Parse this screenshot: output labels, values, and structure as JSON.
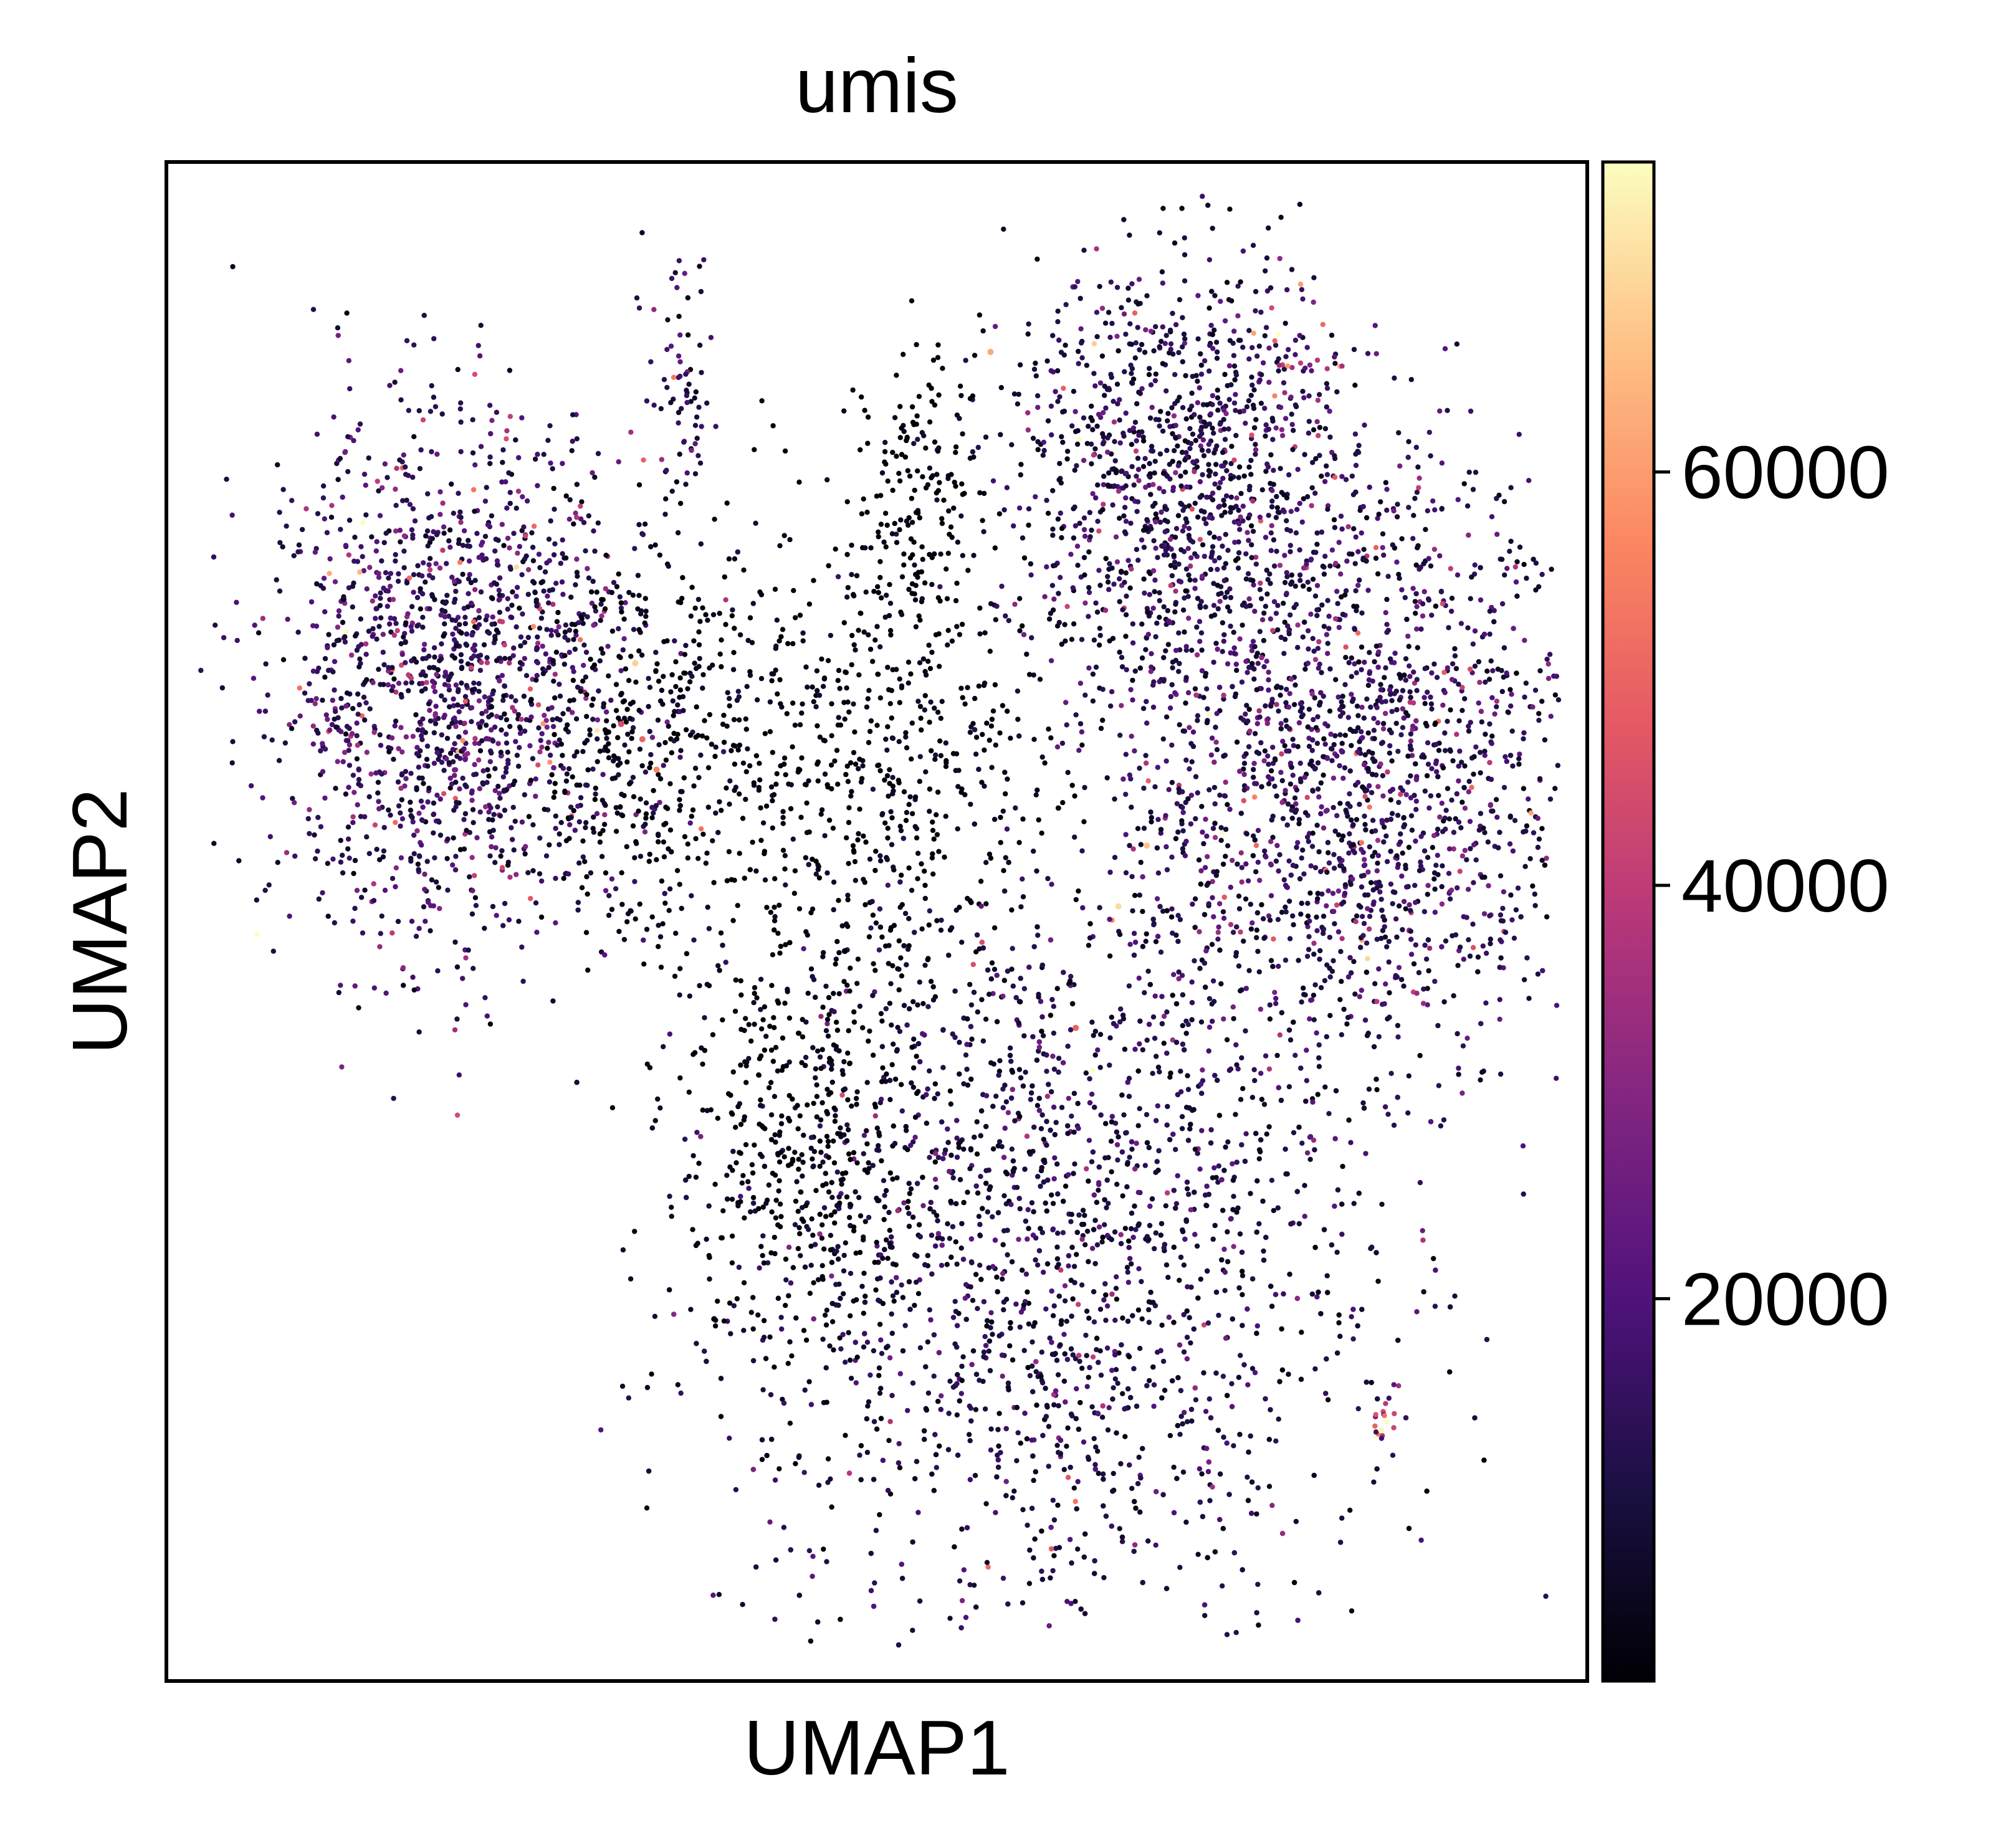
{
  "chart_data": {
    "type": "scatter",
    "title": "umis",
    "xlabel": "UMAP1",
    "ylabel": "UMAP2",
    "xlim": [
      0,
      100
    ],
    "ylim": [
      0,
      100
    ],
    "x_ticks": "none",
    "y_ticks": "none",
    "grid": false,
    "legend": "none",
    "colorbar": {
      "label": "",
      "colormap": "magma",
      "range": [
        1500,
        75000
      ],
      "ticks": [
        20000,
        40000,
        60000
      ],
      "tick_labels": [
        "20000",
        "40000",
        "60000"
      ],
      "placement": "right"
    },
    "point_count_approx": 9000,
    "clusters": [
      {
        "cx": 20,
        "cy": 66,
        "sx": 6.5,
        "sy": 8.5,
        "weight": 0.17,
        "mean_value": 14000
      },
      {
        "cx": 34,
        "cy": 62,
        "sx": 5.0,
        "sy": 7.0,
        "weight": 0.05,
        "mean_value": 4000
      },
      {
        "cx": 50,
        "cy": 60,
        "sx": 6.5,
        "sy": 8.0,
        "weight": 0.06,
        "mean_value": 3500
      },
      {
        "cx": 71,
        "cy": 79,
        "sx": 6.0,
        "sy": 7.5,
        "weight": 0.12,
        "mean_value": 11000
      },
      {
        "cx": 83,
        "cy": 60,
        "sx": 8.5,
        "sy": 10.0,
        "weight": 0.22,
        "mean_value": 13000
      },
      {
        "cx": 62,
        "cy": 28,
        "sx": 11.0,
        "sy": 13.0,
        "weight": 0.3,
        "mean_value": 10000
      },
      {
        "cx": 45,
        "cy": 35,
        "sx": 4.5,
        "sy": 7.5,
        "weight": 0.05,
        "mean_value": 3000
      },
      {
        "cx": 36,
        "cy": 85,
        "sx": 1.2,
        "sy": 4.5,
        "weight": 0.008,
        "mean_value": 12000
      },
      {
        "cx": 53,
        "cy": 78,
        "sx": 2.2,
        "sy": 5.0,
        "weight": 0.02,
        "mean_value": 3000
      },
      {
        "cx": 80,
        "cy": 87,
        "sx": 1.5,
        "sy": 2.0,
        "weight": 0.004,
        "mean_value": 28000
      },
      {
        "cx": 85.5,
        "cy": 17.5,
        "sx": 0.5,
        "sy": 1.0,
        "weight": 0.002,
        "mean_value": 40000
      }
    ],
    "notable_points": [
      {
        "x": 58,
        "y": 87.5,
        "value": 62000
      },
      {
        "x": 33,
        "y": 67,
        "value": 68000
      },
      {
        "x": 33.5,
        "y": 62,
        "value": 50000
      },
      {
        "x": 32,
        "y": 63,
        "value": 45000
      },
      {
        "x": 69,
        "y": 55,
        "value": 66000
      },
      {
        "x": 67,
        "y": 51,
        "value": 70000
      },
      {
        "x": 85.5,
        "y": 16.5,
        "value": 74000
      },
      {
        "x": 34.5,
        "y": 60,
        "value": 56000
      },
      {
        "x": 64,
        "y": 43,
        "value": 50000
      }
    ]
  }
}
